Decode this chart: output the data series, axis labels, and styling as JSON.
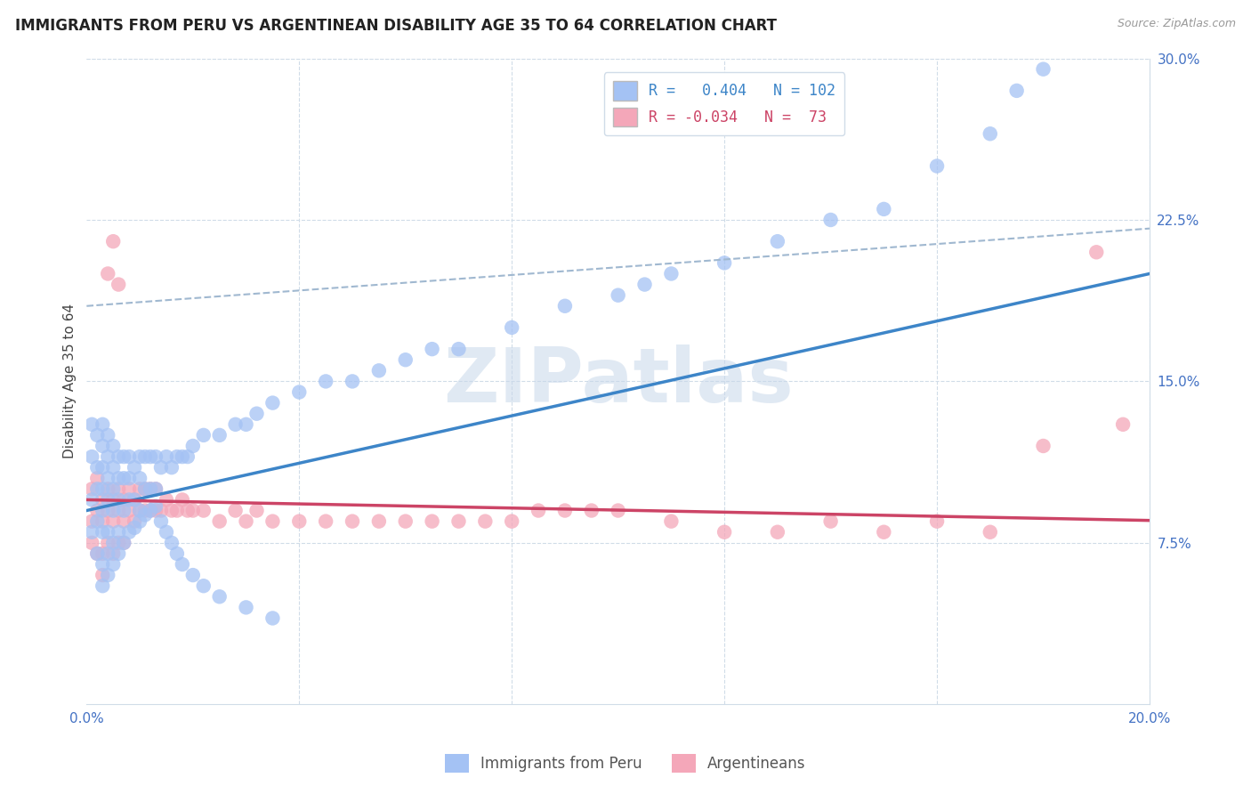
{
  "title": "IMMIGRANTS FROM PERU VS ARGENTINEAN DISABILITY AGE 35 TO 64 CORRELATION CHART",
  "source": "Source: ZipAtlas.com",
  "ylabel": "Disability Age 35 to 64",
  "x_min": 0.0,
  "x_max": 0.2,
  "y_min": 0.0,
  "y_max": 0.3,
  "x_ticks": [
    0.0,
    0.04,
    0.08,
    0.12,
    0.16,
    0.2
  ],
  "y_ticks_right": [
    0.075,
    0.15,
    0.225,
    0.3
  ],
  "y_tick_labels_right": [
    "7.5%",
    "15.0%",
    "22.5%",
    "30.0%"
  ],
  "blue_color": "#a4c2f4",
  "pink_color": "#f4a7b9",
  "blue_line_color": "#3d85c8",
  "pink_line_color": "#cc4466",
  "dashed_line_color": "#a0b8d0",
  "watermark": "ZIPatlas",
  "blue_R": 0.404,
  "blue_N": 102,
  "pink_R": -0.034,
  "pink_N": 73,
  "blue_intercept": 0.09,
  "blue_slope": 0.55,
  "pink_intercept": 0.095,
  "pink_slope": -0.048,
  "dashed_intercept": 0.185,
  "dashed_slope": 0.18,
  "grid_color": "#d0dce8",
  "title_color": "#222222",
  "axis_label_color": "#4472c4",
  "ylabel_color": "#444444",
  "blue_points_x": [
    0.001,
    0.001,
    0.001,
    0.001,
    0.002,
    0.002,
    0.002,
    0.002,
    0.002,
    0.003,
    0.003,
    0.003,
    0.003,
    0.003,
    0.003,
    0.003,
    0.004,
    0.004,
    0.004,
    0.004,
    0.004,
    0.004,
    0.005,
    0.005,
    0.005,
    0.005,
    0.005,
    0.006,
    0.006,
    0.006,
    0.006,
    0.007,
    0.007,
    0.007,
    0.008,
    0.008,
    0.008,
    0.009,
    0.009,
    0.01,
    0.01,
    0.01,
    0.011,
    0.011,
    0.012,
    0.012,
    0.013,
    0.013,
    0.014,
    0.015,
    0.016,
    0.017,
    0.018,
    0.019,
    0.02,
    0.022,
    0.025,
    0.028,
    0.03,
    0.032,
    0.035,
    0.04,
    0.045,
    0.05,
    0.055,
    0.06,
    0.065,
    0.07,
    0.08,
    0.09,
    0.1,
    0.105,
    0.11,
    0.12,
    0.13,
    0.14,
    0.15,
    0.16,
    0.17,
    0.175,
    0.18,
    0.003,
    0.004,
    0.005,
    0.006,
    0.007,
    0.008,
    0.009,
    0.01,
    0.011,
    0.012,
    0.013,
    0.014,
    0.015,
    0.016,
    0.017,
    0.018,
    0.02,
    0.022,
    0.025,
    0.03,
    0.035
  ],
  "blue_points_y": [
    0.095,
    0.115,
    0.13,
    0.08,
    0.1,
    0.11,
    0.125,
    0.085,
    0.07,
    0.09,
    0.1,
    0.11,
    0.12,
    0.13,
    0.08,
    0.065,
    0.095,
    0.105,
    0.115,
    0.125,
    0.08,
    0.07,
    0.09,
    0.1,
    0.11,
    0.12,
    0.075,
    0.095,
    0.105,
    0.115,
    0.08,
    0.09,
    0.105,
    0.115,
    0.095,
    0.105,
    0.115,
    0.095,
    0.11,
    0.09,
    0.105,
    0.115,
    0.1,
    0.115,
    0.1,
    0.115,
    0.1,
    0.115,
    0.11,
    0.115,
    0.11,
    0.115,
    0.115,
    0.115,
    0.12,
    0.125,
    0.125,
    0.13,
    0.13,
    0.135,
    0.14,
    0.145,
    0.15,
    0.15,
    0.155,
    0.16,
    0.165,
    0.165,
    0.175,
    0.185,
    0.19,
    0.195,
    0.2,
    0.205,
    0.215,
    0.225,
    0.23,
    0.25,
    0.265,
    0.285,
    0.295,
    0.055,
    0.06,
    0.065,
    0.07,
    0.075,
    0.08,
    0.082,
    0.085,
    0.088,
    0.09,
    0.092,
    0.085,
    0.08,
    0.075,
    0.07,
    0.065,
    0.06,
    0.055,
    0.05,
    0.045,
    0.04
  ],
  "pink_points_x": [
    0.001,
    0.001,
    0.001,
    0.002,
    0.002,
    0.002,
    0.003,
    0.003,
    0.003,
    0.003,
    0.004,
    0.004,
    0.004,
    0.005,
    0.005,
    0.005,
    0.006,
    0.006,
    0.006,
    0.007,
    0.007,
    0.007,
    0.008,
    0.008,
    0.009,
    0.009,
    0.01,
    0.01,
    0.011,
    0.011,
    0.012,
    0.012,
    0.013,
    0.013,
    0.014,
    0.015,
    0.016,
    0.017,
    0.018,
    0.019,
    0.02,
    0.022,
    0.025,
    0.028,
    0.03,
    0.032,
    0.035,
    0.04,
    0.045,
    0.05,
    0.055,
    0.06,
    0.065,
    0.07,
    0.075,
    0.08,
    0.085,
    0.09,
    0.095,
    0.1,
    0.11,
    0.12,
    0.13,
    0.14,
    0.15,
    0.16,
    0.17,
    0.18,
    0.19,
    0.195,
    0.004,
    0.005,
    0.006
  ],
  "pink_points_y": [
    0.085,
    0.1,
    0.075,
    0.09,
    0.105,
    0.07,
    0.085,
    0.095,
    0.07,
    0.06,
    0.09,
    0.1,
    0.075,
    0.085,
    0.095,
    0.07,
    0.09,
    0.1,
    0.075,
    0.085,
    0.095,
    0.075,
    0.09,
    0.1,
    0.085,
    0.095,
    0.09,
    0.1,
    0.09,
    0.1,
    0.09,
    0.1,
    0.09,
    0.1,
    0.09,
    0.095,
    0.09,
    0.09,
    0.095,
    0.09,
    0.09,
    0.09,
    0.085,
    0.09,
    0.085,
    0.09,
    0.085,
    0.085,
    0.085,
    0.085,
    0.085,
    0.085,
    0.085,
    0.085,
    0.085,
    0.085,
    0.09,
    0.09,
    0.09,
    0.09,
    0.085,
    0.08,
    0.08,
    0.085,
    0.08,
    0.085,
    0.08,
    0.12,
    0.21,
    0.13,
    0.2,
    0.215,
    0.195
  ]
}
